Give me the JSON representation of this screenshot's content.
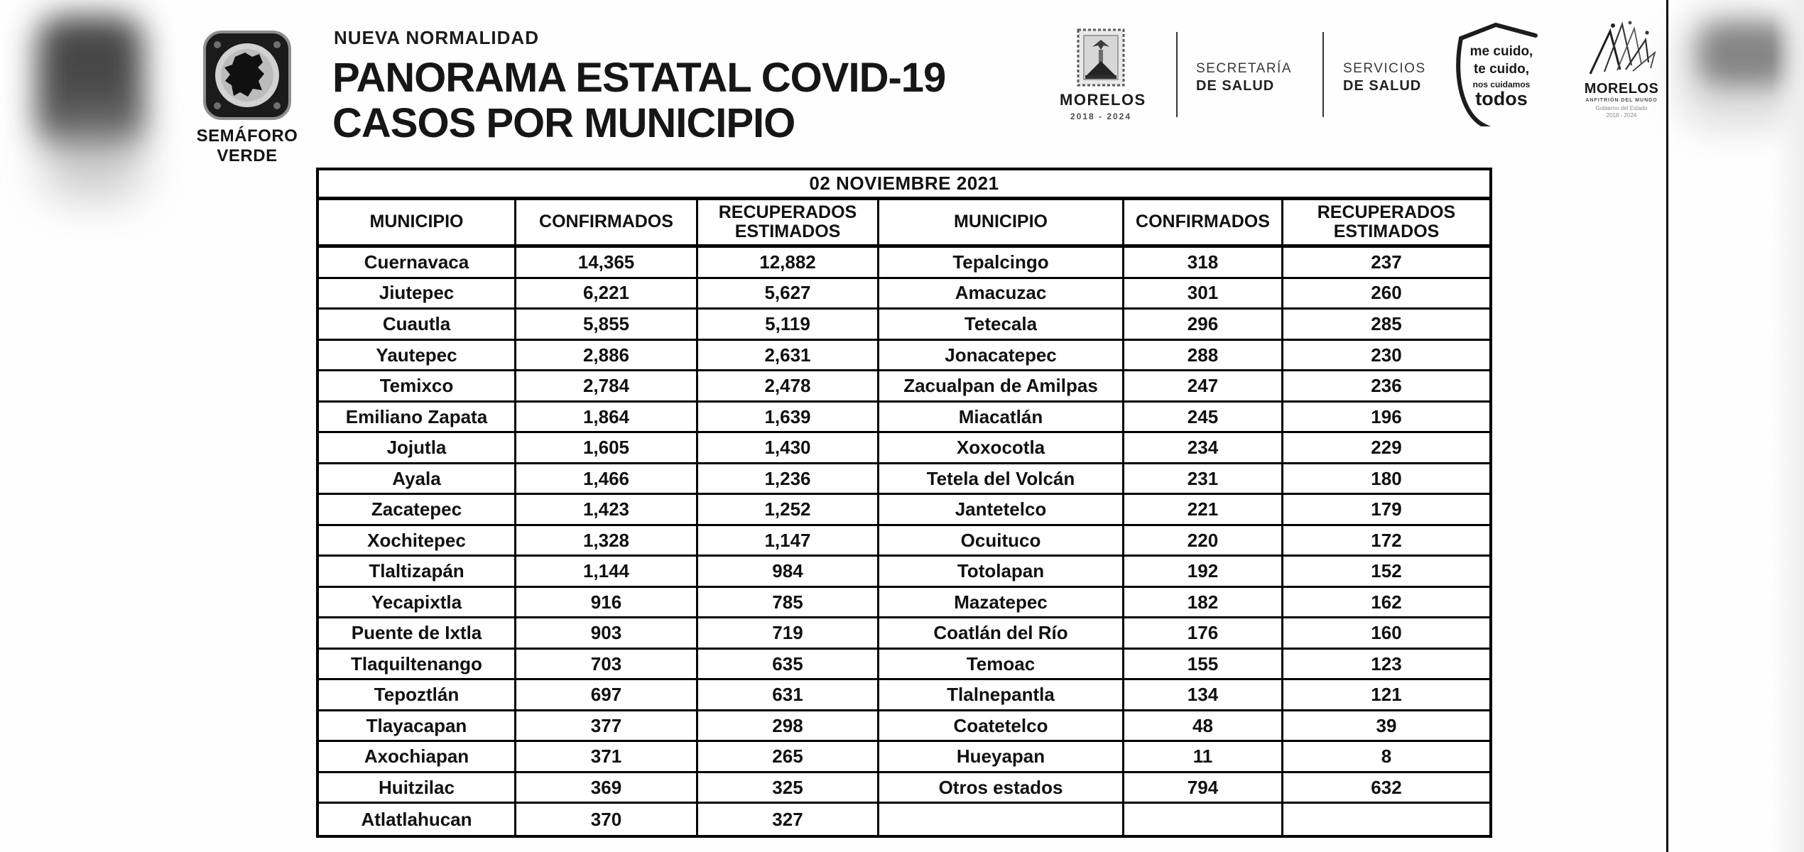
{
  "page": {
    "kicker": "NUEVA NORMALIDAD",
    "title_line1": "PANORAMA ESTATAL COVID-19",
    "title_line2": "CASOS POR MUNICIPIO"
  },
  "semaforo_badge": {
    "label_line1": "SEMÁFORO",
    "label_line2": "VERDE"
  },
  "logos": {
    "state_seal": {
      "name": "MORELOS",
      "years": "2018 - 2024"
    },
    "secretaria": {
      "line1": "SECRETARÍA",
      "line2": "DE SALUD"
    },
    "servicios": {
      "line1": "SERVICIOS",
      "line2": "DE SALUD"
    },
    "shield": {
      "line1": "me cuido,",
      "line2": "te cuido,",
      "line3": "nos cuidamos",
      "line4": "todos"
    },
    "brand": {
      "name": "MORELOS",
      "tagline": "ANFITRIÓN DEL MUNDO",
      "sub1": "Gobierno del Estado",
      "sub2": "2018 - 2024"
    }
  },
  "colors": {
    "ink": "#111111",
    "muted_row": "#767676",
    "background": "#fefefe"
  },
  "table": {
    "date": "02 NOVIEMBRE 2021",
    "columns": [
      "MUNICIPIO",
      "CONFIRMADOS",
      "RECUPERADOS ESTIMADOS",
      "MUNICIPIO",
      "CONFIRMADOS",
      "RECUPERADOS ESTIMADOS"
    ],
    "rows": [
      {
        "left": [
          "Cuernavaca",
          "14,365",
          "12,882"
        ],
        "right": [
          "Tepalcingo",
          "318",
          "237"
        ]
      },
      {
        "left": [
          "Jiutepec",
          "6,221",
          "5,627"
        ],
        "right": [
          "Amacuzac",
          "301",
          "260"
        ]
      },
      {
        "left": [
          "Cuautla",
          "5,855",
          "5,119"
        ],
        "right": [
          "Tetecala",
          "296",
          "285"
        ]
      },
      {
        "left": [
          "Yautepec",
          "2,886",
          "2,631"
        ],
        "right": [
          "Jonacatepec",
          "288",
          "230"
        ]
      },
      {
        "left": [
          "Temixco",
          "2,784",
          "2,478"
        ],
        "right": [
          "Zacualpan de Amilpas",
          "247",
          "236"
        ]
      },
      {
        "left": [
          "Emiliano Zapata",
          "1,864",
          "1,639"
        ],
        "right": [
          "Miacatlán",
          "245",
          "196"
        ]
      },
      {
        "left": [
          "Jojutla",
          "1,605",
          "1,430"
        ],
        "right": [
          "Xoxocotla",
          "234",
          "229"
        ]
      },
      {
        "left": [
          "Ayala",
          "1,466",
          "1,236"
        ],
        "right": [
          "Tetela del Volcán",
          "231",
          "180"
        ]
      },
      {
        "left": [
          "Zacatepec",
          "1,423",
          "1,252"
        ],
        "right": [
          "Jantetelco",
          "221",
          "179"
        ]
      },
      {
        "left": [
          "Xochitepec",
          "1,328",
          "1,147"
        ],
        "right": [
          "Ocuituco",
          "220",
          "172"
        ]
      },
      {
        "left": [
          "Tlaltizapán",
          "1,144",
          "984"
        ],
        "right": [
          "Totolapan",
          "192",
          "152"
        ]
      },
      {
        "left": [
          "Yecapixtla",
          "916",
          "785"
        ],
        "right": [
          "Mazatepec",
          "182",
          "162"
        ]
      },
      {
        "left": [
          "Puente de Ixtla",
          "903",
          "719"
        ],
        "right": [
          "Coatlán del Río",
          "176",
          "160"
        ]
      },
      {
        "left": [
          "Tlaquiltenango",
          "703",
          "635"
        ],
        "right": [
          "Temoac",
          "155",
          "123"
        ]
      },
      {
        "left": [
          "Tepoztlán",
          "697",
          "631"
        ],
        "right": [
          "Tlalnepantla",
          "134",
          "121"
        ]
      },
      {
        "left": [
          "Tlayacapan",
          "377",
          "298"
        ],
        "right": [
          "Coatetelco",
          "48",
          "39"
        ]
      },
      {
        "left": [
          "Axochiapan",
          "371",
          "265"
        ],
        "right": [
          "Hueyapan",
          "11",
          "8"
        ]
      },
      {
        "left": [
          "Huitzilac",
          "369",
          "325"
        ],
        "right": [
          "Otros estados",
          "794",
          "632"
        ],
        "right_muted": true
      },
      {
        "left": [
          "Atlatlahucan",
          "370",
          "327"
        ],
        "right": [
          "",
          "",
          ""
        ]
      }
    ]
  }
}
